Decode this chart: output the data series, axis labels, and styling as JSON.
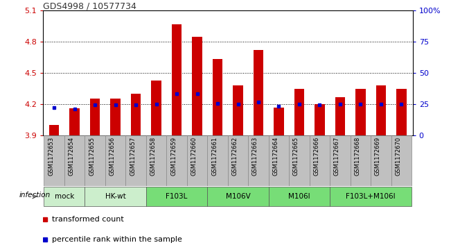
{
  "title": "GDS4998 / 10577734",
  "samples": [
    "GSM1172653",
    "GSM1172654",
    "GSM1172655",
    "GSM1172656",
    "GSM1172657",
    "GSM1172658",
    "GSM1172659",
    "GSM1172660",
    "GSM1172661",
    "GSM1172662",
    "GSM1172663",
    "GSM1172664",
    "GSM1172665",
    "GSM1172666",
    "GSM1172667",
    "GSM1172668",
    "GSM1172669",
    "GSM1172670"
  ],
  "red_values": [
    4.0,
    4.16,
    4.25,
    4.25,
    4.3,
    4.43,
    4.97,
    4.85,
    4.63,
    4.38,
    4.72,
    4.17,
    4.35,
    4.2,
    4.27,
    4.35,
    4.38,
    4.35
  ],
  "blue_values": [
    4.17,
    4.15,
    4.19,
    4.19,
    4.19,
    4.2,
    4.3,
    4.3,
    4.21,
    4.2,
    4.22,
    4.18,
    4.2,
    4.19,
    4.2,
    4.2,
    4.2,
    4.2
  ],
  "ymin": 3.9,
  "ymax": 5.1,
  "yticks": [
    3.9,
    4.2,
    4.5,
    4.8,
    5.1
  ],
  "right_yticks": [
    0,
    25,
    50,
    75,
    100
  ],
  "right_ytick_labels": [
    "0",
    "25",
    "50",
    "75",
    "100%"
  ],
  "dotted_lines": [
    4.2,
    4.5,
    4.8
  ],
  "groups": [
    {
      "label": "mock",
      "start": 0,
      "end": 2,
      "color": "#cceecc"
    },
    {
      "label": "HK-wt",
      "start": 2,
      "end": 5,
      "color": "#cceecc"
    },
    {
      "label": "F103L",
      "start": 5,
      "end": 8,
      "color": "#77dd77"
    },
    {
      "label": "M106V",
      "start": 8,
      "end": 11,
      "color": "#77dd77"
    },
    {
      "label": "M106I",
      "start": 11,
      "end": 14,
      "color": "#77dd77"
    },
    {
      "label": "F103L+M106I",
      "start": 14,
      "end": 18,
      "color": "#77dd77"
    }
  ],
  "infection_label": "infection",
  "bar_color": "#cc0000",
  "blue_color": "#0000cc",
  "bg_color": "#c0c0c0",
  "bar_width": 0.5,
  "title_color": "#333333",
  "left_tick_color": "#cc0000",
  "right_tick_color": "#0000cc",
  "legend_red_label": "transformed count",
  "legend_blue_label": "percentile rank within the sample"
}
